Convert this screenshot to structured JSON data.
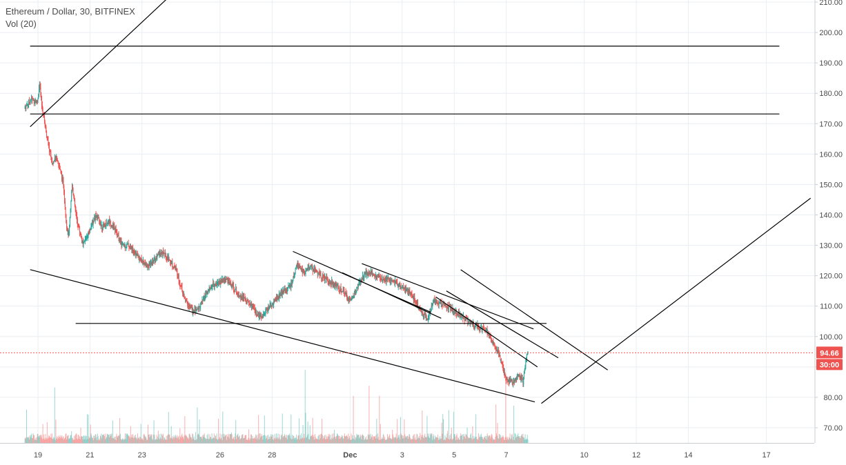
{
  "legend": {
    "symbol_line": "Ethereum / Dollar, 30, BITFINEX",
    "volume_line": "Vol (20)"
  },
  "chart_data": {
    "type": "candlestick",
    "symbol": "Ethereum / Dollar",
    "interval": "30",
    "exchange": "BITFINEX",
    "ylim": [
      66,
      211
    ],
    "yticks": [
      "210.00",
      "200.00",
      "190.00",
      "180.00",
      "170.00",
      "160.00",
      "150.00",
      "140.00",
      "130.00",
      "120.00",
      "110.00",
      "100.00",
      "90.00",
      "80.00",
      "70.00"
    ],
    "xtick_labels": [
      "19",
      "21",
      "23",
      "26",
      "28",
      "Dec",
      "3",
      "5",
      "7",
      "10",
      "12",
      "14",
      "17"
    ],
    "grid": true,
    "last_price": "94.66",
    "countdown": "30:00",
    "colors": {
      "up": "#26a69a",
      "down": "#ef5350",
      "price_line": "#ef5350",
      "trendline": "#000000",
      "grid": "#e9eef2",
      "axis_text": "#4a4a4a"
    },
    "price_path": [
      [
        "Nov 18 12:00",
        175
      ],
      [
        "Nov 18 18:00",
        178
      ],
      [
        "Nov 19 00:00",
        177
      ],
      [
        "Nov 19 02:00",
        183
      ],
      [
        "Nov 19 04:00",
        176
      ],
      [
        "Nov 19 06:00",
        172
      ],
      [
        "Nov 19 10:00",
        163
      ],
      [
        "Nov 19 14:00",
        157
      ],
      [
        "Nov 19 18:00",
        159
      ],
      [
        "Nov 20 00:00",
        150
      ],
      [
        "Nov 20 03:00",
        136
      ],
      [
        "Nov 20 05:00",
        133
      ],
      [
        "Nov 20 08:00",
        150
      ],
      [
        "Nov 20 12:00",
        139
      ],
      [
        "Nov 20 18:00",
        130
      ],
      [
        "Nov 21 00:00",
        135
      ],
      [
        "Nov 21 06:00",
        140
      ],
      [
        "Nov 21 12:00",
        136
      ],
      [
        "Nov 21 18:00",
        138
      ],
      [
        "Nov 22 00:00",
        135
      ],
      [
        "Nov 22 06:00",
        130
      ],
      [
        "Nov 22 12:00",
        130
      ],
      [
        "Nov 23 00:00",
        125
      ],
      [
        "Nov 23 06:00",
        123
      ],
      [
        "Nov 23 12:00",
        125
      ],
      [
        "Nov 23 18:00",
        128
      ],
      [
        "Nov 24 00:00",
        126
      ],
      [
        "Nov 24 08:00",
        122
      ],
      [
        "Nov 24 16:00",
        112
      ],
      [
        "Nov 25 00:00",
        108
      ],
      [
        "Nov 25 06:00",
        110
      ],
      [
        "Nov 25 12:00",
        114
      ],
      [
        "Nov 25 18:00",
        117
      ],
      [
        "Nov 26 06:00",
        119
      ],
      [
        "Nov 26 18:00",
        114
      ],
      [
        "Nov 27 06:00",
        110
      ],
      [
        "Nov 27 12:00",
        106
      ],
      [
        "Nov 27 18:00",
        108
      ],
      [
        "Nov 28 06:00",
        113
      ],
      [
        "Nov 28 18:00",
        117
      ],
      [
        "Nov 29 00:00",
        124
      ],
      [
        "Nov 29 06:00",
        121
      ],
      [
        "Nov 29 12:00",
        123
      ],
      [
        "Nov 29 18:00",
        121
      ],
      [
        "Nov 30 06:00",
        118
      ],
      [
        "Nov 30 18:00",
        115
      ],
      [
        "Dec 1 00:00",
        112
      ],
      [
        "Dec 1 06:00",
        115
      ],
      [
        "Dec 1 12:00",
        120
      ],
      [
        "Dec 1 18:00",
        121
      ],
      [
        "Dec 2 06:00",
        119
      ],
      [
        "Dec 2 18:00",
        118
      ],
      [
        "Dec 3 06:00",
        115
      ],
      [
        "Dec 3 12:00",
        112
      ],
      [
        "Dec 3 18:00",
        108
      ],
      [
        "Dec 4 00:00",
        106
      ],
      [
        "Dec 4 06:00",
        112
      ],
      [
        "Dec 4 12:00",
        111
      ],
      [
        "Dec 4 18:00",
        110
      ],
      [
        "Dec 5 06:00",
        107
      ],
      [
        "Dec 5 18:00",
        104
      ],
      [
        "Dec 6 06:00",
        102
      ],
      [
        "Dec 6 12:00",
        98
      ],
      [
        "Dec 6 18:00",
        94
      ],
      [
        "Dec 7 00:00",
        86
      ],
      [
        "Dec 7 06:00",
        85
      ],
      [
        "Dec 7 12:00",
        87
      ],
      [
        "Dec 7 16:00",
        85
      ],
      [
        "Dec 7 18:00",
        91
      ],
      [
        "Dec 7 20:00",
        94.66
      ]
    ]
  }
}
